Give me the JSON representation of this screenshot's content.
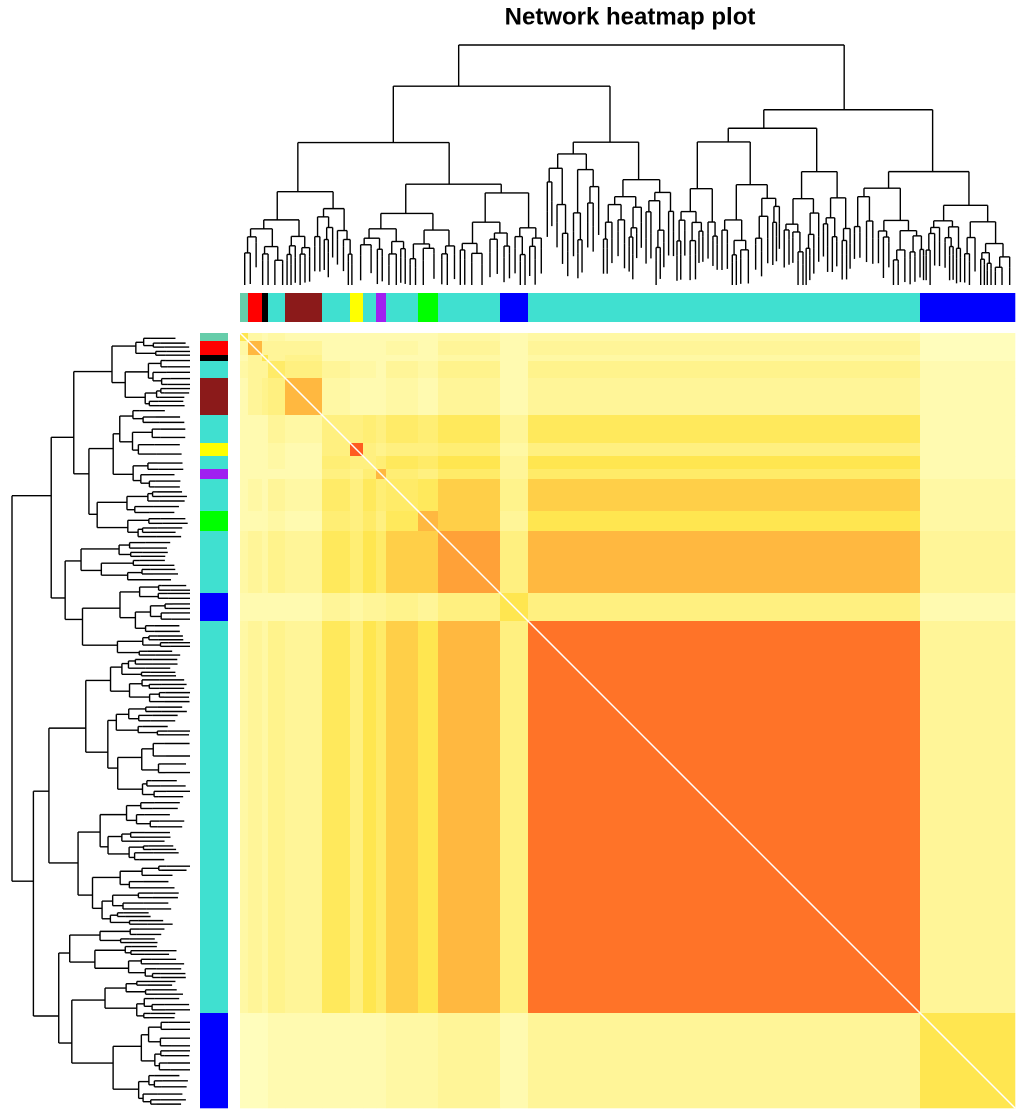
{
  "chart_data": {
    "type": "heatmap",
    "title": "Network heatmap plot",
    "module_colors": [
      "#66CDAA",
      "#FF0000",
      "#000000",
      "#40E0D0",
      "#8B1A1A",
      "#40E0D0",
      "#FFFF00",
      "#40E0D0",
      "#A020F0",
      "#40E0D0",
      "#00FF00",
      "#40E0D0",
      "#0000FF",
      "#40E0D0",
      "#0000FF"
    ],
    "module_sizes": [
      8,
      14,
      6,
      17,
      37,
      28,
      13,
      13,
      10,
      32,
      20,
      62,
      28,
      392,
      95
    ],
    "zlim": [
      0,
      1
    ],
    "colorscale": [
      "#FFFFC8",
      "#FFE650",
      "#FF0000"
    ],
    "matrix": [
      [
        0.5,
        0.15,
        0.1,
        0.15,
        0.1,
        0.1,
        0.1,
        0.1,
        0.1,
        0.1,
        0.1,
        0.15,
        0.1,
        0.15,
        0.05
      ],
      [
        0.15,
        0.6,
        0.2,
        0.2,
        0.2,
        0.1,
        0.1,
        0.1,
        0.1,
        0.15,
        0.1,
        0.2,
        0.1,
        0.2,
        0.05
      ],
      [
        0.1,
        0.2,
        0.5,
        0.2,
        0.25,
        0.1,
        0.1,
        0.1,
        0.1,
        0.1,
        0.1,
        0.15,
        0.1,
        0.15,
        0.05
      ],
      [
        0.15,
        0.2,
        0.2,
        0.4,
        0.3,
        0.2,
        0.15,
        0.15,
        0.1,
        0.2,
        0.15,
        0.25,
        0.1,
        0.25,
        0.1
      ],
      [
        0.1,
        0.2,
        0.25,
        0.3,
        0.6,
        0.15,
        0.1,
        0.1,
        0.1,
        0.15,
        0.1,
        0.2,
        0.1,
        0.2,
        0.1
      ],
      [
        0.1,
        0.1,
        0.1,
        0.2,
        0.15,
        0.3,
        0.3,
        0.35,
        0.3,
        0.4,
        0.35,
        0.45,
        0.2,
        0.45,
        0.1
      ],
      [
        0.1,
        0.1,
        0.1,
        0.15,
        0.1,
        0.3,
        0.8,
        0.3,
        0.25,
        0.3,
        0.3,
        0.35,
        0.15,
        0.3,
        0.1
      ],
      [
        0.1,
        0.1,
        0.1,
        0.15,
        0.1,
        0.35,
        0.3,
        0.3,
        0.35,
        0.45,
        0.4,
        0.5,
        0.2,
        0.5,
        0.1
      ],
      [
        0.1,
        0.1,
        0.1,
        0.1,
        0.1,
        0.3,
        0.25,
        0.35,
        0.6,
        0.35,
        0.3,
        0.4,
        0.2,
        0.4,
        0.1
      ],
      [
        0.1,
        0.15,
        0.1,
        0.2,
        0.15,
        0.4,
        0.3,
        0.45,
        0.35,
        0.4,
        0.45,
        0.55,
        0.25,
        0.55,
        0.15
      ],
      [
        0.1,
        0.1,
        0.1,
        0.15,
        0.1,
        0.35,
        0.3,
        0.4,
        0.3,
        0.45,
        0.6,
        0.55,
        0.2,
        0.5,
        0.15
      ],
      [
        0.15,
        0.2,
        0.15,
        0.25,
        0.2,
        0.45,
        0.35,
        0.5,
        0.4,
        0.55,
        0.55,
        0.65,
        0.3,
        0.6,
        0.2
      ],
      [
        0.1,
        0.1,
        0.1,
        0.1,
        0.1,
        0.2,
        0.15,
        0.2,
        0.2,
        0.25,
        0.2,
        0.3,
        0.5,
        0.3,
        0.1
      ],
      [
        0.15,
        0.2,
        0.15,
        0.25,
        0.2,
        0.45,
        0.3,
        0.5,
        0.4,
        0.55,
        0.5,
        0.6,
        0.3,
        0.75,
        0.2
      ],
      [
        0.05,
        0.05,
        0.05,
        0.1,
        0.1,
        0.1,
        0.1,
        0.1,
        0.1,
        0.15,
        0.15,
        0.2,
        0.1,
        0.2,
        0.5
      ]
    ]
  }
}
